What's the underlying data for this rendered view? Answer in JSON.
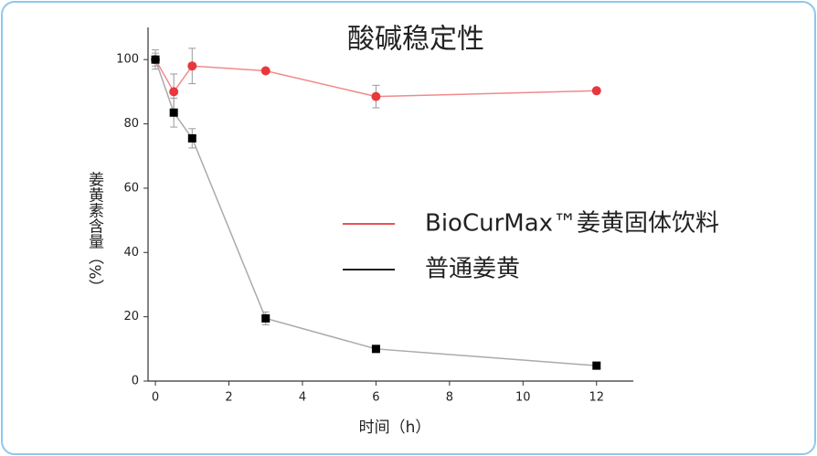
{
  "chart_data": {
    "type": "line",
    "title": "酸碱稳定性",
    "x_label": "时间（h）",
    "y_label": "姜黄素含量（%）",
    "x": [
      0,
      0.5,
      1,
      3,
      6,
      12
    ],
    "series": [
      {
        "name": "BioCurMax™姜黄固体饮料",
        "color": "#e8383d",
        "line_color": "#f08a8c",
        "marker": "circle",
        "values": [
          100,
          90,
          98,
          96.5,
          88.5,
          90.3
        ],
        "errors": [
          3,
          5.5,
          5.5,
          0.5,
          3.5,
          0.5
        ]
      },
      {
        "name": "普通姜黄",
        "color": "#000000",
        "line_color": "#aaaaaa",
        "marker": "square",
        "values": [
          100,
          83.5,
          75.5,
          19.5,
          10,
          4.8
        ],
        "errors": [
          2,
          4.5,
          3,
          2,
          0.5,
          0.5
        ]
      }
    ],
    "xlim": [
      -0.2,
      13
    ],
    "xticks": [
      0,
      2,
      4,
      6,
      8,
      10,
      12
    ],
    "ylim": [
      0,
      110
    ],
    "yticks": [
      0,
      20,
      40,
      60,
      80,
      100
    ]
  }
}
